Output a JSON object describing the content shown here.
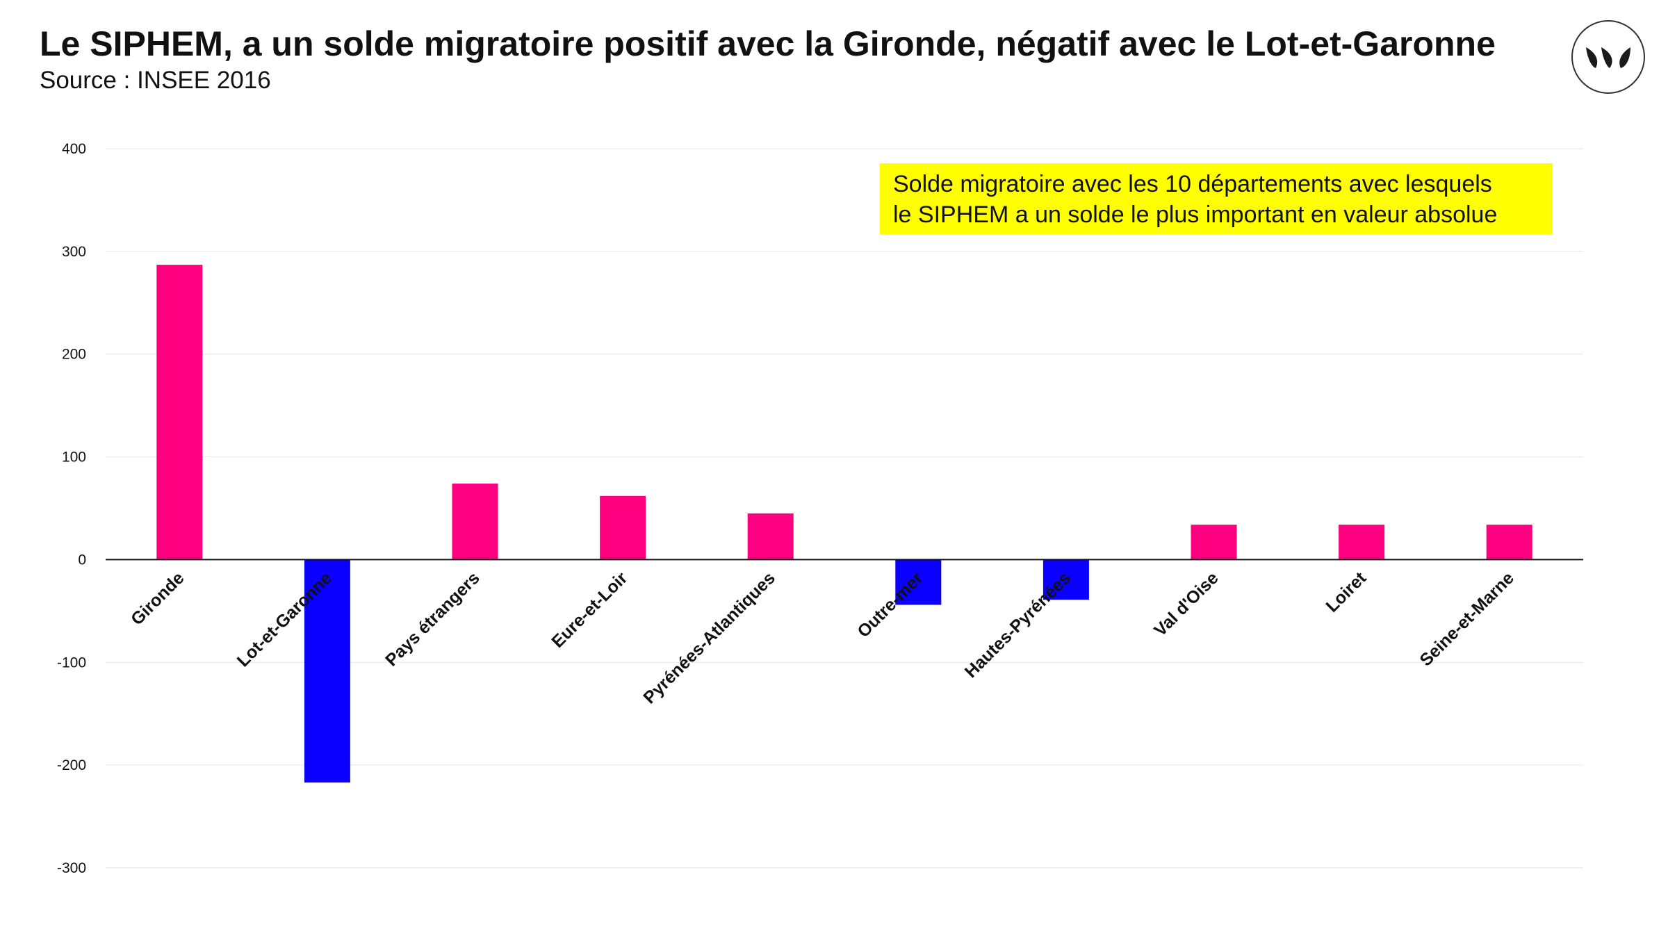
{
  "header": {
    "title": "Le SIPHEM, a un solde migratoire positif avec la Gironde, négatif avec le Lot-et-Garonne",
    "subtitle": "Source : INSEE 2016"
  },
  "annotation": {
    "line1": "Solde migratoire avec les 10 départements avec lesquels",
    "line2": "le SIPHEM a un solde le plus important en valeur absolue"
  },
  "logo": {
    "icon": "leaves-logo-icon"
  },
  "colors": {
    "positive": "#ff0080",
    "negative": "#0a00ff",
    "highlight": "#ffff00"
  },
  "chart_data": {
    "type": "bar",
    "categories": [
      "Gironde",
      "Lot-et-Garonne",
      "Pays étrangers",
      "Eure-et-Loir",
      "Pyrénées-Atlantiques",
      "Outre-mer",
      "Hautes-Pyrénées",
      "Val d'Oise",
      "Loiret",
      "Seine-et-Marne"
    ],
    "values": [
      287,
      -217,
      74,
      62,
      45,
      -44,
      -39,
      34,
      34,
      34
    ],
    "ylim": [
      -300,
      400
    ],
    "yticks": [
      400,
      300,
      200,
      100,
      0,
      -100,
      -200,
      -300
    ],
    "grid": true,
    "title": "",
    "xlabel": "",
    "ylabel": ""
  }
}
